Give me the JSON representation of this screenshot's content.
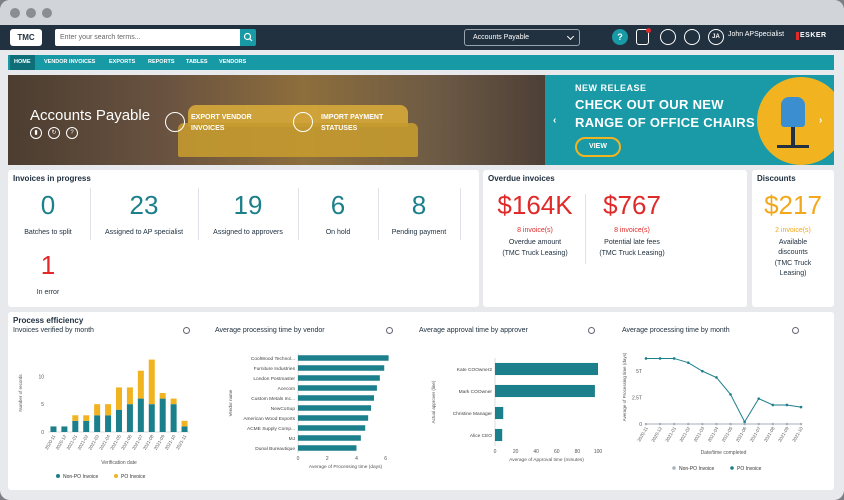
{
  "topbar": {
    "logo": "TMC",
    "search_placeholder": "Enter your search terms...",
    "ap_selector": "Accounts Payable",
    "help": "?",
    "user_initials": "JA",
    "user_name": "John APSpecialist",
    "brand": "ESKER"
  },
  "nav": [
    "HOME",
    "VENDOR INVOICES",
    "EXPORTS",
    "REPORTS",
    "TABLES",
    "VENDORS"
  ],
  "hero": {
    "title": "Accounts Payable",
    "actions": [
      "EXPORT VENDOR INVOICES",
      "IMPORT PAYMENT STATUSES"
    ],
    "promo_small": "NEW RELEASE",
    "promo_big": "CHECK OUT OUR NEW RANGE OF OFFICE CHAIRS",
    "promo_button": "VIEW"
  },
  "invoices_in_progress": {
    "title": "Invoices in progress",
    "stats": [
      {
        "value": "0",
        "label": "Batches to split"
      },
      {
        "value": "23",
        "label": "Assigned to AP specialist"
      },
      {
        "value": "19",
        "label": "Assigned to approvers"
      },
      {
        "value": "6",
        "label": "On hold"
      },
      {
        "value": "8",
        "label": "Pending payment"
      },
      {
        "value": "1",
        "label": "In error"
      }
    ]
  },
  "overdue": {
    "title": "Overdue invoices",
    "items": [
      {
        "value": "$164K",
        "count": "8 invoice(s)",
        "label": "Overdue amount",
        "sub": "(TMC Truck Leasing)"
      },
      {
        "value": "$767",
        "count": "8 invoice(s)",
        "label": "Potential late fees",
        "sub": "(TMC Truck Leasing)"
      }
    ]
  },
  "discounts": {
    "title": "Discounts",
    "value": "$217",
    "count": "2 invoice(s)",
    "label": "Available discounts",
    "sub": "(TMC Truck Leasing)"
  },
  "efficiency": {
    "title": "Process efficiency"
  },
  "colors": {
    "teal": "#1c7f8c",
    "amber": "#f2b321",
    "red": "#e02a2a",
    "navy": "#213140"
  },
  "chart_data": [
    {
      "type": "bar",
      "title": "Invoices verified by month",
      "xlabel": "Verification date",
      "ylabel": "Number of records",
      "yticks": [
        "0",
        "5",
        "10"
      ],
      "ylim": [
        0,
        14
      ],
      "categories": [
        "2020-11",
        "2020-12",
        "2021-01",
        "2021-02",
        "2021-03",
        "2021-04",
        "2021-05",
        "2021-06",
        "2021-07",
        "2021-08",
        "2021-09",
        "2021-10",
        "2021-11"
      ],
      "series": [
        {
          "name": "Non-PO Invoice",
          "values": [
            1,
            1,
            2,
            2,
            3,
            3,
            4,
            5,
            6,
            5,
            6,
            5,
            1
          ],
          "color": "#1c7f8c"
        },
        {
          "name": "PO Invoice",
          "values": [
            0,
            0,
            1,
            1,
            2,
            2,
            4,
            3,
            5,
            8,
            1,
            1,
            1
          ],
          "color": "#f2b321"
        }
      ],
      "legend": "bottom"
    },
    {
      "type": "bar",
      "orientation": "horizontal",
      "title": "Average processing time by vendor",
      "xlabel": "Average of Processing time (days)",
      "ylabel": "Vendor name",
      "xticks": [
        "0",
        "2",
        "4",
        "6"
      ],
      "xlim": [
        0,
        6.5
      ],
      "categories": [
        "CoolWood Technol...",
        "Furniture Industries",
        "London Postmaster",
        "Acecom",
        "Custom Metals Inc...",
        "NewCoSup",
        "American Wood Exports",
        "ACME Supply Comp...",
        "MJ",
        "Dunal Bureautique"
      ],
      "values": [
        6.2,
        5.9,
        5.6,
        5.4,
        5.2,
        5.0,
        4.8,
        4.6,
        4.3,
        4.0
      ]
    },
    {
      "type": "bar",
      "orientation": "horizontal",
      "title": "Average approval time by approver",
      "xlabel": "Average of Approval time (minutes)",
      "ylabel": "Actual approver (line)",
      "xticks": [
        "0",
        "20",
        "40",
        "60",
        "80",
        "100"
      ],
      "xlim": [
        0,
        100
      ],
      "categories": [
        "Kate COOwner2",
        "Mark COOwner",
        "Christine Manager",
        "Alice CEO"
      ],
      "values": [
        100,
        97,
        8,
        7
      ]
    },
    {
      "type": "line",
      "title": "Average processing time by month",
      "xlabel": "Date/time completed",
      "ylabel": "Average of Processing time (days)",
      "yticks": [
        "0",
        "2.5T",
        "5T"
      ],
      "ylim": [
        0,
        7
      ],
      "categories": [
        "2020-11",
        "2020-12",
        "2021-01",
        "2021-02",
        "2021-03",
        "2021-04",
        "2021-05",
        "2021-06",
        "2021-07",
        "2021-08",
        "2021-09",
        "2021-10"
      ],
      "series": [
        {
          "name": "Non-PO Invoice",
          "values": [
            0,
            0,
            0,
            0,
            0,
            0,
            0,
            0,
            0,
            0,
            0,
            0
          ],
          "color": "#aab2ba"
        },
        {
          "name": "PO Invoice",
          "values": [
            6.2,
            6.2,
            6.2,
            5.8,
            5.0,
            4.4,
            2.8,
            0.2,
            2.4,
            1.8,
            1.8,
            1.6
          ],
          "color": "#1c7f8c"
        }
      ],
      "legend": "bottom"
    }
  ]
}
